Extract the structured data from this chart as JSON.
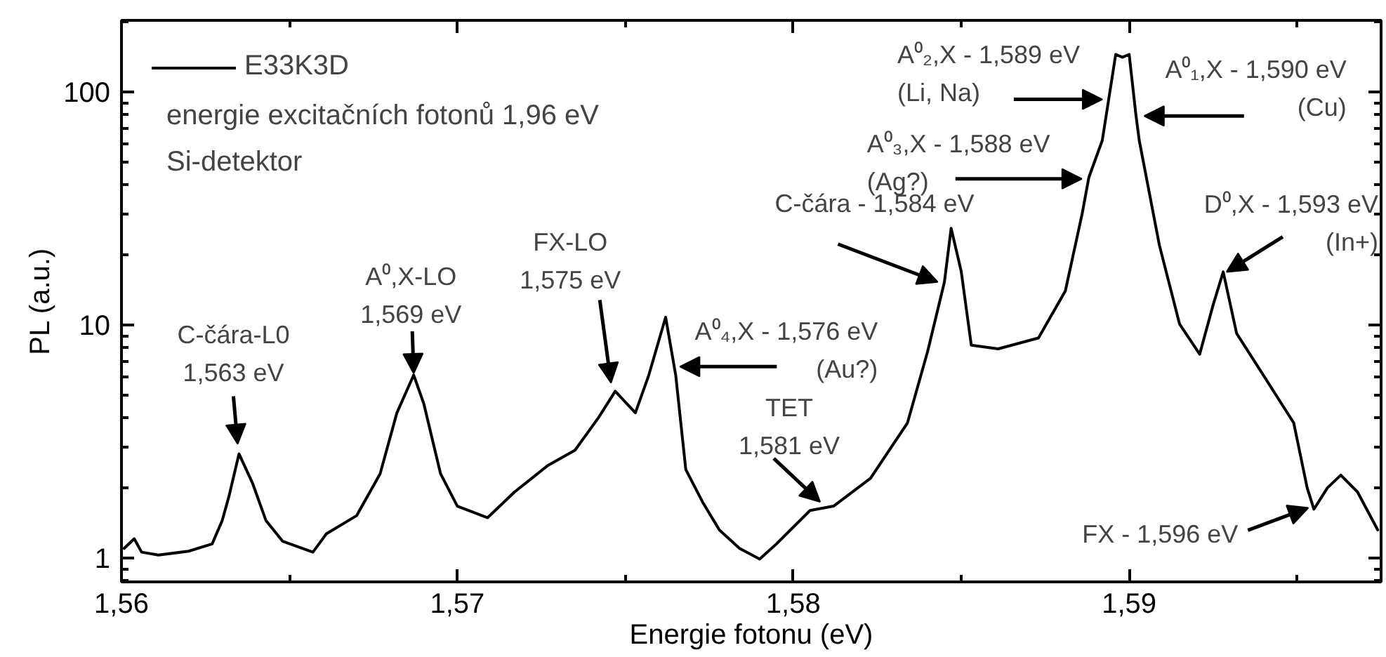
{
  "chart_data": {
    "type": "line",
    "xlabel": "Energie fotonu (eV)",
    "ylabel": "PL (a.u.)",
    "log": "y",
    "legend": "top left",
    "grid": false,
    "line_style": "solid",
    "marker": "none",
    "xlim": [
      1.56,
      1.5975
    ],
    "ylim": [
      0.79,
      203
    ],
    "xticks": [
      {
        "value": 1.56,
        "label": "1,56"
      },
      {
        "value": 1.57,
        "label": "1,57"
      },
      {
        "value": 1.58,
        "label": "1,58"
      },
      {
        "value": 1.59,
        "label": "1,59"
      }
    ],
    "yticks": [
      1,
      10,
      100
    ],
    "series": [
      {
        "name": "E33K3D",
        "color": "#000000",
        "x": [
          1.56008,
          1.56038,
          1.5606,
          1.5611,
          1.562,
          1.5627,
          1.563,
          1.5632,
          1.5635,
          1.5639,
          1.5643,
          1.5648,
          1.5657,
          1.5661,
          1.567,
          1.5677,
          1.5682,
          1.5687,
          1.569,
          1.5695,
          1.57,
          1.5709,
          1.5717,
          1.5727,
          1.5735,
          1.5742,
          1.5747,
          1.5753,
          1.5757,
          1.5762,
          1.5765,
          1.5768,
          1.5773,
          1.5778,
          1.5784,
          1.579,
          1.5795,
          1.5805,
          1.5812,
          1.5823,
          1.5834,
          1.584,
          1.5845,
          1.5847,
          1.585,
          1.5853,
          1.5861,
          1.5873,
          1.5881,
          1.5886,
          1.5888,
          1.5892,
          1.5896,
          1.5898,
          1.59,
          1.5902,
          1.5903,
          1.5909,
          1.5915,
          1.5921,
          1.5925,
          1.5928,
          1.5932,
          1.5939,
          1.5949,
          1.5953,
          1.5955,
          1.5959,
          1.5963,
          1.5968,
          1.5974
        ],
        "values": [
          1.1,
          1.21,
          1.06,
          1.03,
          1.07,
          1.15,
          1.45,
          1.84,
          2.8,
          2.1,
          1.45,
          1.18,
          1.06,
          1.27,
          1.52,
          2.3,
          4.2,
          6.1,
          4.6,
          2.3,
          1.67,
          1.49,
          1.92,
          2.5,
          2.9,
          4.0,
          5.2,
          4.2,
          6.1,
          10.8,
          6.1,
          2.4,
          1.74,
          1.32,
          1.1,
          0.99,
          1.15,
          1.6,
          1.67,
          2.2,
          3.8,
          7.7,
          15.3,
          26,
          17,
          8.2,
          7.9,
          8.8,
          14,
          30,
          43,
          62,
          145,
          141,
          145,
          80,
          62,
          22,
          10.1,
          7.5,
          12.2,
          16.9,
          9.2,
          6.4,
          3.8,
          2.0,
          1.62,
          2.0,
          2.27,
          1.92,
          1.32
        ]
      }
    ],
    "annotations": [
      "energie excitačních fotonů 1,96 eV",
      "Si-detektor",
      {
        "text": "C-čára-L0\n1,563 eV",
        "x": 1.5635,
        "y": 2.8
      },
      {
        "text": "A⁰,X-LO\n1,569 eV",
        "x": 1.5687,
        "y": 6.2
      },
      {
        "text": "FX-LO\n1,575 eV",
        "x": 1.5747,
        "y": 5.2
      },
      {
        "text": "A⁰₄,X - 1,576 eV\n(Au?)",
        "x": 1.5765,
        "y": 6.1
      },
      {
        "text": "TET\n1,581 eV",
        "x": 1.5808,
        "y": 1.74
      },
      {
        "text": "C-čára - 1,584 eV",
        "x": 1.5843,
        "y": 15.3
      },
      {
        "text": "A⁰₃,X - 1,588 eV\n(Ag?)",
        "x": 1.5888,
        "y": 43
      },
      {
        "text": "A⁰₂,X - 1,589 eV\n(Li, Na)",
        "x": 1.5892,
        "y": 93
      },
      {
        "text": "A⁰₁,X - 1,590 eV\n(Cu)",
        "x": 1.5902,
        "y": 80
      },
      {
        "text": "D⁰,X - 1,593 eV\n(In+)",
        "x": 1.5929,
        "y": 16.9
      },
      {
        "text": "FX - 1,596 eV",
        "x": 1.5955,
        "y": 1.62
      }
    ]
  }
}
